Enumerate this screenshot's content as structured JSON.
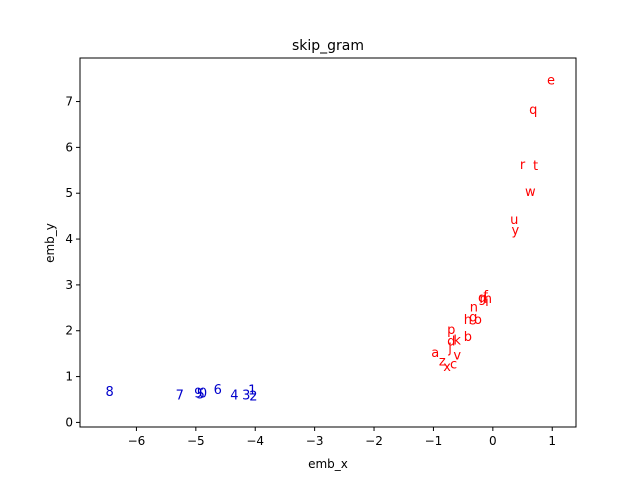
{
  "chart_data": {
    "type": "scatter",
    "title": "skip_gram",
    "xlabel": "emb_x",
    "ylabel": "emb_y",
    "xlim": [
      -6.95,
      1.4
    ],
    "ylim": [
      -0.1,
      7.95
    ],
    "xticks": [
      -6,
      -5,
      -4,
      -3,
      -2,
      -1,
      0,
      1
    ],
    "yticks": [
      0,
      1,
      2,
      3,
      4,
      5,
      6,
      7
    ],
    "grid": false,
    "colors": {
      "letters": "#ff0000",
      "digits": "#0000cc"
    },
    "series": [
      {
        "color_key": "letters",
        "points": [
          {
            "label": "e",
            "x": 0.98,
            "y": 7.45
          },
          {
            "label": "q",
            "x": 0.68,
            "y": 6.8
          },
          {
            "label": "r",
            "x": 0.5,
            "y": 5.6
          },
          {
            "label": "t",
            "x": 0.72,
            "y": 5.58
          },
          {
            "label": "w",
            "x": 0.63,
            "y": 5.02
          },
          {
            "label": "u",
            "x": 0.36,
            "y": 4.4
          },
          {
            "label": "y",
            "x": 0.38,
            "y": 4.18
          },
          {
            "label": "f",
            "x": -0.12,
            "y": 2.75
          },
          {
            "label": "g",
            "x": -0.18,
            "y": 2.7
          },
          {
            "label": "m",
            "x": -0.12,
            "y": 2.68
          },
          {
            "label": "i",
            "x": -0.1,
            "y": 2.62
          },
          {
            "label": "n",
            "x": -0.32,
            "y": 2.5
          },
          {
            "label": "h",
            "x": -0.42,
            "y": 2.22
          },
          {
            "label": "g",
            "x": -0.33,
            "y": 2.28
          },
          {
            "label": "o",
            "x": -0.25,
            "y": 2.22
          },
          {
            "label": "p",
            "x": -0.7,
            "y": 2.0
          },
          {
            "label": "b",
            "x": -0.42,
            "y": 1.85
          },
          {
            "label": "d",
            "x": -0.7,
            "y": 1.75
          },
          {
            "label": "k",
            "x": -0.6,
            "y": 1.78
          },
          {
            "label": "j",
            "x": -0.72,
            "y": 1.6
          },
          {
            "label": "a",
            "x": -0.97,
            "y": 1.5
          },
          {
            "label": "v",
            "x": -0.6,
            "y": 1.45
          },
          {
            "label": "z",
            "x": -0.85,
            "y": 1.32
          },
          {
            "label": "c",
            "x": -0.66,
            "y": 1.25
          },
          {
            "label": "x",
            "x": -0.77,
            "y": 1.2
          }
        ]
      },
      {
        "color_key": "digits",
        "points": [
          {
            "label": "8",
            "x": -6.45,
            "y": 0.65
          },
          {
            "label": "7",
            "x": -5.27,
            "y": 0.58
          },
          {
            "label": "9",
            "x": -4.96,
            "y": 0.62
          },
          {
            "label": "5",
            "x": -4.92,
            "y": 0.6
          },
          {
            "label": "0",
            "x": -4.88,
            "y": 0.62
          },
          {
            "label": "6",
            "x": -4.63,
            "y": 0.7
          },
          {
            "label": "4",
            "x": -4.35,
            "y": 0.58
          },
          {
            "label": "3",
            "x": -4.15,
            "y": 0.58
          },
          {
            "label": "1",
            "x": -4.05,
            "y": 0.68
          },
          {
            "label": "2",
            "x": -4.03,
            "y": 0.55
          }
        ]
      }
    ]
  }
}
